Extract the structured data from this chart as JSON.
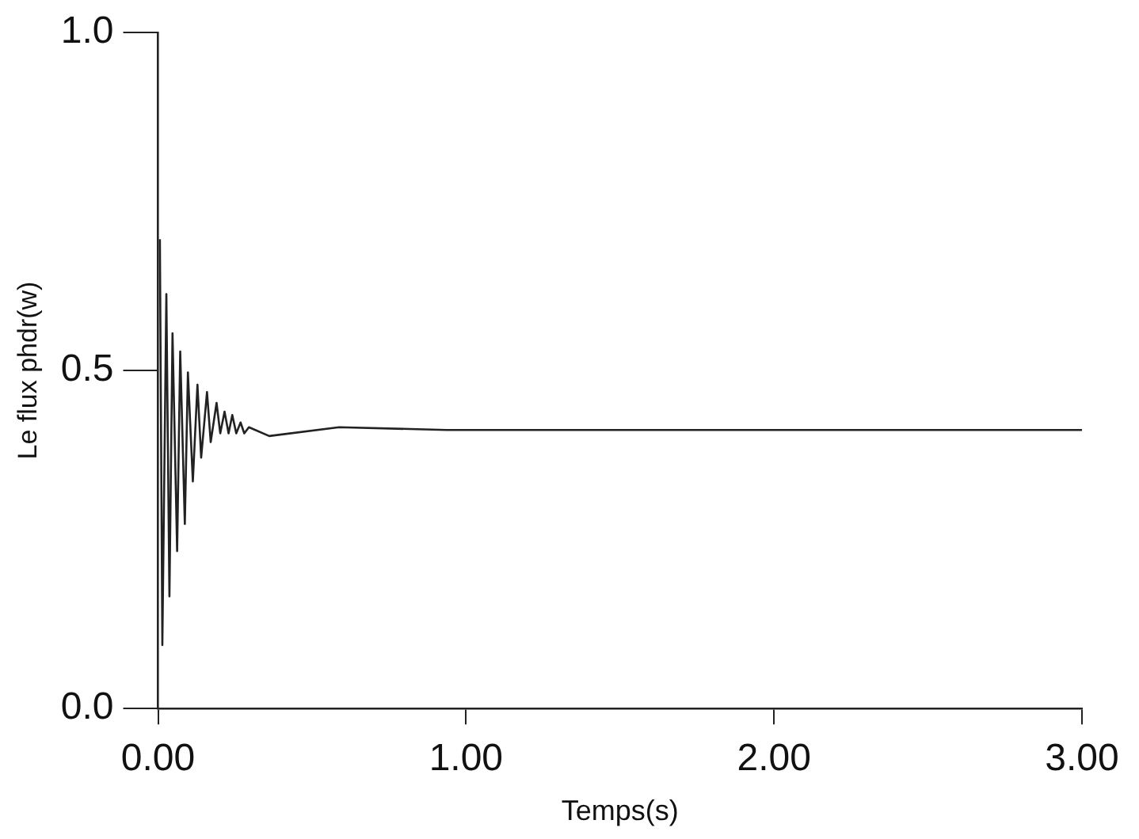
{
  "chart_data": {
    "type": "line",
    "xlabel": "Temps(s)",
    "ylabel": "Le flux phdr(w)",
    "x": [
      0.006,
      0.014,
      0.027,
      0.037,
      0.047,
      0.062,
      0.072,
      0.087,
      0.097,
      0.113,
      0.128,
      0.14,
      0.159,
      0.171,
      0.19,
      0.202,
      0.216,
      0.229,
      0.241,
      0.254,
      0.268,
      0.28,
      0.295,
      0.361,
      0.588,
      0.938,
      3.0
    ],
    "series": [
      {
        "color": "#222222",
        "values": [
          0.694,
          0.094,
          0.613,
          0.166,
          0.555,
          0.233,
          0.528,
          0.273,
          0.497,
          0.336,
          0.479,
          0.371,
          0.468,
          0.394,
          0.452,
          0.407,
          0.439,
          0.407,
          0.434,
          0.407,
          0.423,
          0.407,
          0.416,
          0.403,
          0.416,
          0.412,
          0.412
        ]
      }
    ],
    "xlim": [
      0,
      3
    ],
    "ylim": [
      0,
      1
    ],
    "xticks": [
      {
        "value": 0,
        "label": "0.00"
      },
      {
        "value": 1,
        "label": "1.00"
      },
      {
        "value": 2,
        "label": "2.00"
      },
      {
        "value": 3,
        "label": "3.00"
      }
    ],
    "yticks": [
      {
        "value": 0,
        "label": "0.0"
      },
      {
        "value": 0.5,
        "label": "0.5"
      },
      {
        "value": 1,
        "label": "1.0"
      }
    ],
    "grid": false,
    "legend": false,
    "marker": "none",
    "line_style": "solid"
  }
}
